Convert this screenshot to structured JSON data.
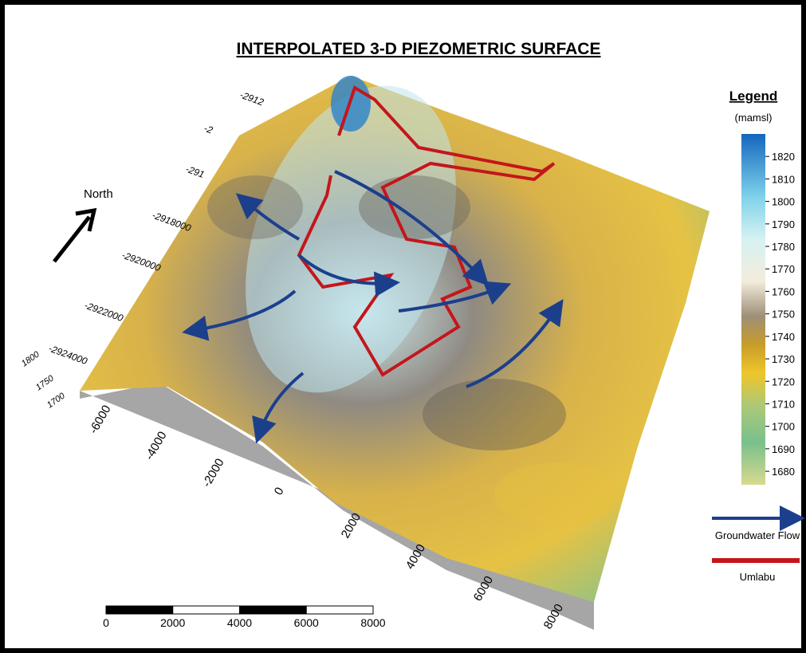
{
  "title": "INTERPOLATED 3-D PIEZOMETRIC SURFACE",
  "north_label": "North",
  "northing_labels": [
    "-2912",
    "-2",
    "-291",
    "-2918000",
    "-2920000",
    "-2922000",
    "-2924000"
  ],
  "elevation_labels": [
    "1800",
    "1750",
    "1700"
  ],
  "easting_labels": [
    "-6000",
    "-4000",
    "-2000",
    "0",
    "2000",
    "4000",
    "6000",
    "8000"
  ],
  "legend": {
    "title": "Legend",
    "unit": "(mamsl)",
    "colorbar": {
      "range": [
        1674,
        1830
      ],
      "ticks": [
        1820,
        1810,
        1800,
        1790,
        1780,
        1770,
        1760,
        1750,
        1740,
        1730,
        1720,
        1710,
        1700,
        1690,
        1680
      ]
    },
    "items": [
      {
        "label": "Groundwater Flow",
        "color": "#1c3f8c"
      },
      {
        "label": "Umlabu",
        "color": "#c4161c"
      }
    ]
  },
  "scale_bar": {
    "range": [
      0,
      8000
    ],
    "ticks": [
      0,
      2000,
      4000,
      6000,
      8000
    ]
  }
}
